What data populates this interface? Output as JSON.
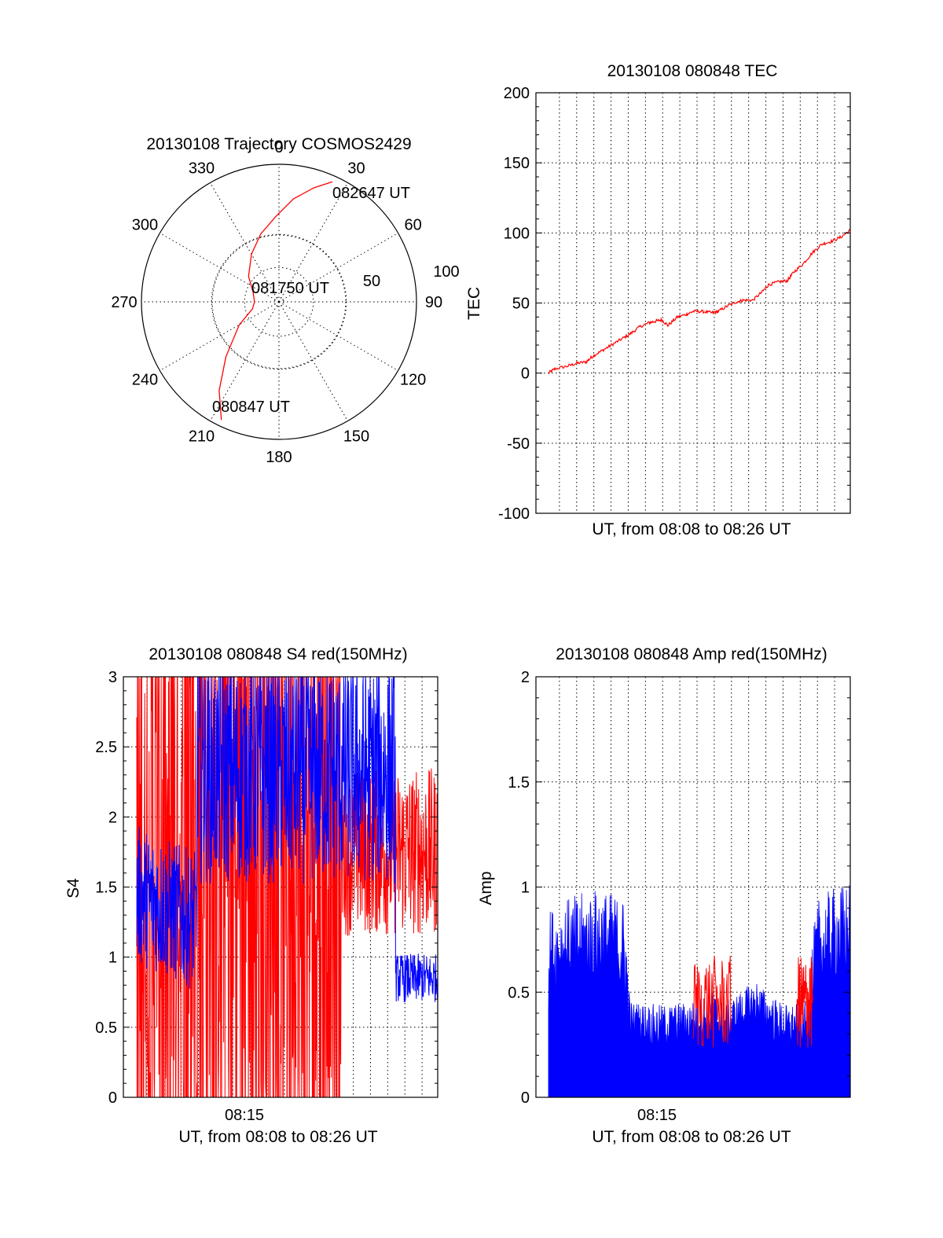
{
  "colors": {
    "red": "#ff0000",
    "blue": "#0000ff",
    "axis": "#000000"
  },
  "chart_data": [
    {
      "id": "trajectory",
      "type": "polar",
      "title": "20130108 Trajectory COSMOS2429",
      "azimuth_labels": [
        "0",
        "30",
        "60",
        "90",
        "120",
        "150",
        "180",
        "210",
        "240",
        "270",
        "300",
        "330"
      ],
      "radial_labels": [
        "50",
        "100"
      ],
      "radial_range": [
        0,
        90
      ],
      "elevation_rings": [
        50,
        100
      ],
      "series": [
        {
          "color": "red",
          "points": [
            [
              206,
              4
            ],
            [
              214,
              20
            ],
            [
              224,
              40
            ],
            [
              240,
              60
            ],
            [
              255,
              72
            ],
            [
              270,
              74
            ],
            [
              290,
              72
            ],
            [
              310,
              64
            ],
            [
              330,
              54
            ],
            [
              345,
              44
            ],
            [
              358,
              34
            ],
            [
              8,
              22
            ],
            [
              17,
              12
            ],
            [
              24,
              4
            ]
          ]
        }
      ],
      "annotations": [
        {
          "text": "082647 UT",
          "az": 24,
          "r": 4
        },
        {
          "text": "081750 UT",
          "az": 0,
          "r": 90
        },
        {
          "text": "080847 UT",
          "az": 206,
          "r": 4
        }
      ]
    },
    {
      "id": "tec",
      "type": "line",
      "title": "20130108 080848 TEC",
      "ylabel": "TEC",
      "xlabel": "UT, from 08:08 to 08:26 UT",
      "xtick_labels": [],
      "ylim": [
        -100,
        200
      ],
      "yticks": [
        "-100",
        "-50",
        "0",
        "50",
        "100",
        "150",
        "200"
      ],
      "series": [
        {
          "color": "red",
          "x": [
            0.04,
            0.06,
            0.1,
            0.13,
            0.16,
            0.18,
            0.21,
            0.24,
            0.27,
            0.3,
            0.33,
            0.36,
            0.38,
            0.4,
            0.42,
            0.45,
            0.48,
            0.5,
            0.53,
            0.56,
            0.58,
            0.61,
            0.64,
            0.66,
            0.69,
            0.72,
            0.74,
            0.77,
            0.8,
            0.82,
            0.85,
            0.88,
            0.91,
            0.94,
            0.97,
            1.0
          ],
          "y": [
            0,
            3,
            5,
            7,
            8,
            12,
            16,
            20,
            24,
            28,
            33,
            36,
            37,
            38,
            34,
            40,
            42,
            44,
            44,
            43,
            44,
            48,
            51,
            52,
            52,
            58,
            63,
            65,
            66,
            72,
            78,
            86,
            92,
            94,
            97,
            102
          ]
        }
      ]
    },
    {
      "id": "s4",
      "type": "line",
      "title": "20130108 080848 S4 red(150MHz)",
      "ylabel": "S4",
      "xlabel": "UT, from 08:08 to 08:26 UT",
      "xtick_labels": [
        "08:15"
      ],
      "ylim": [
        0,
        3
      ],
      "yticks": [
        "0",
        "0.5",
        "1",
        "1.5",
        "2",
        "2.5",
        "3"
      ],
      "series": [
        {
          "name": "",
          "color": "red",
          "x_range": [
            0.0,
            1.0
          ],
          "mean": 1.6,
          "spread": 1.5,
          "dense_until": 0.68
        },
        {
          "name": "",
          "color": "blue",
          "x_range": [
            0.0,
            1.0
          ],
          "mean": 2.0,
          "spread": 0.8,
          "drop_after": 0.86
        }
      ]
    },
    {
      "id": "amp",
      "type": "area",
      "title": "20130108 080848 Amp red(150MHz)",
      "ylabel": "Amp",
      "xlabel": "UT, from 08:08 to 08:26 UT",
      "xtick_labels": [
        "08:15"
      ],
      "ylim": [
        0,
        2
      ],
      "yticks": [
        "0",
        "0.5",
        "1",
        "1.5",
        "2"
      ],
      "series": [
        {
          "name": "",
          "color": "blue",
          "x": [
            0.04,
            0.1,
            0.2,
            0.28,
            0.3,
            0.4,
            0.5,
            0.56,
            0.6,
            0.7,
            0.74,
            0.8,
            0.84,
            0.86,
            0.9,
            0.95,
            1.0
          ],
          "y": [
            0.65,
            0.7,
            0.75,
            0.7,
            0.35,
            0.33,
            0.35,
            0.4,
            0.34,
            0.45,
            0.38,
            0.33,
            0.34,
            0.35,
            0.7,
            0.75,
            0.78
          ]
        },
        {
          "name": "",
          "color": "red",
          "x": [
            0.5,
            0.52,
            0.54,
            0.56,
            0.57,
            0.58,
            0.6,
            0.84,
            0.85,
            0.86,
            0.87
          ],
          "y": [
            0.5,
            0.5,
            0.6,
            0.6,
            0.55,
            0.45,
            0.4,
            0.5,
            0.45,
            0.5,
            0.6
          ]
        }
      ]
    }
  ]
}
